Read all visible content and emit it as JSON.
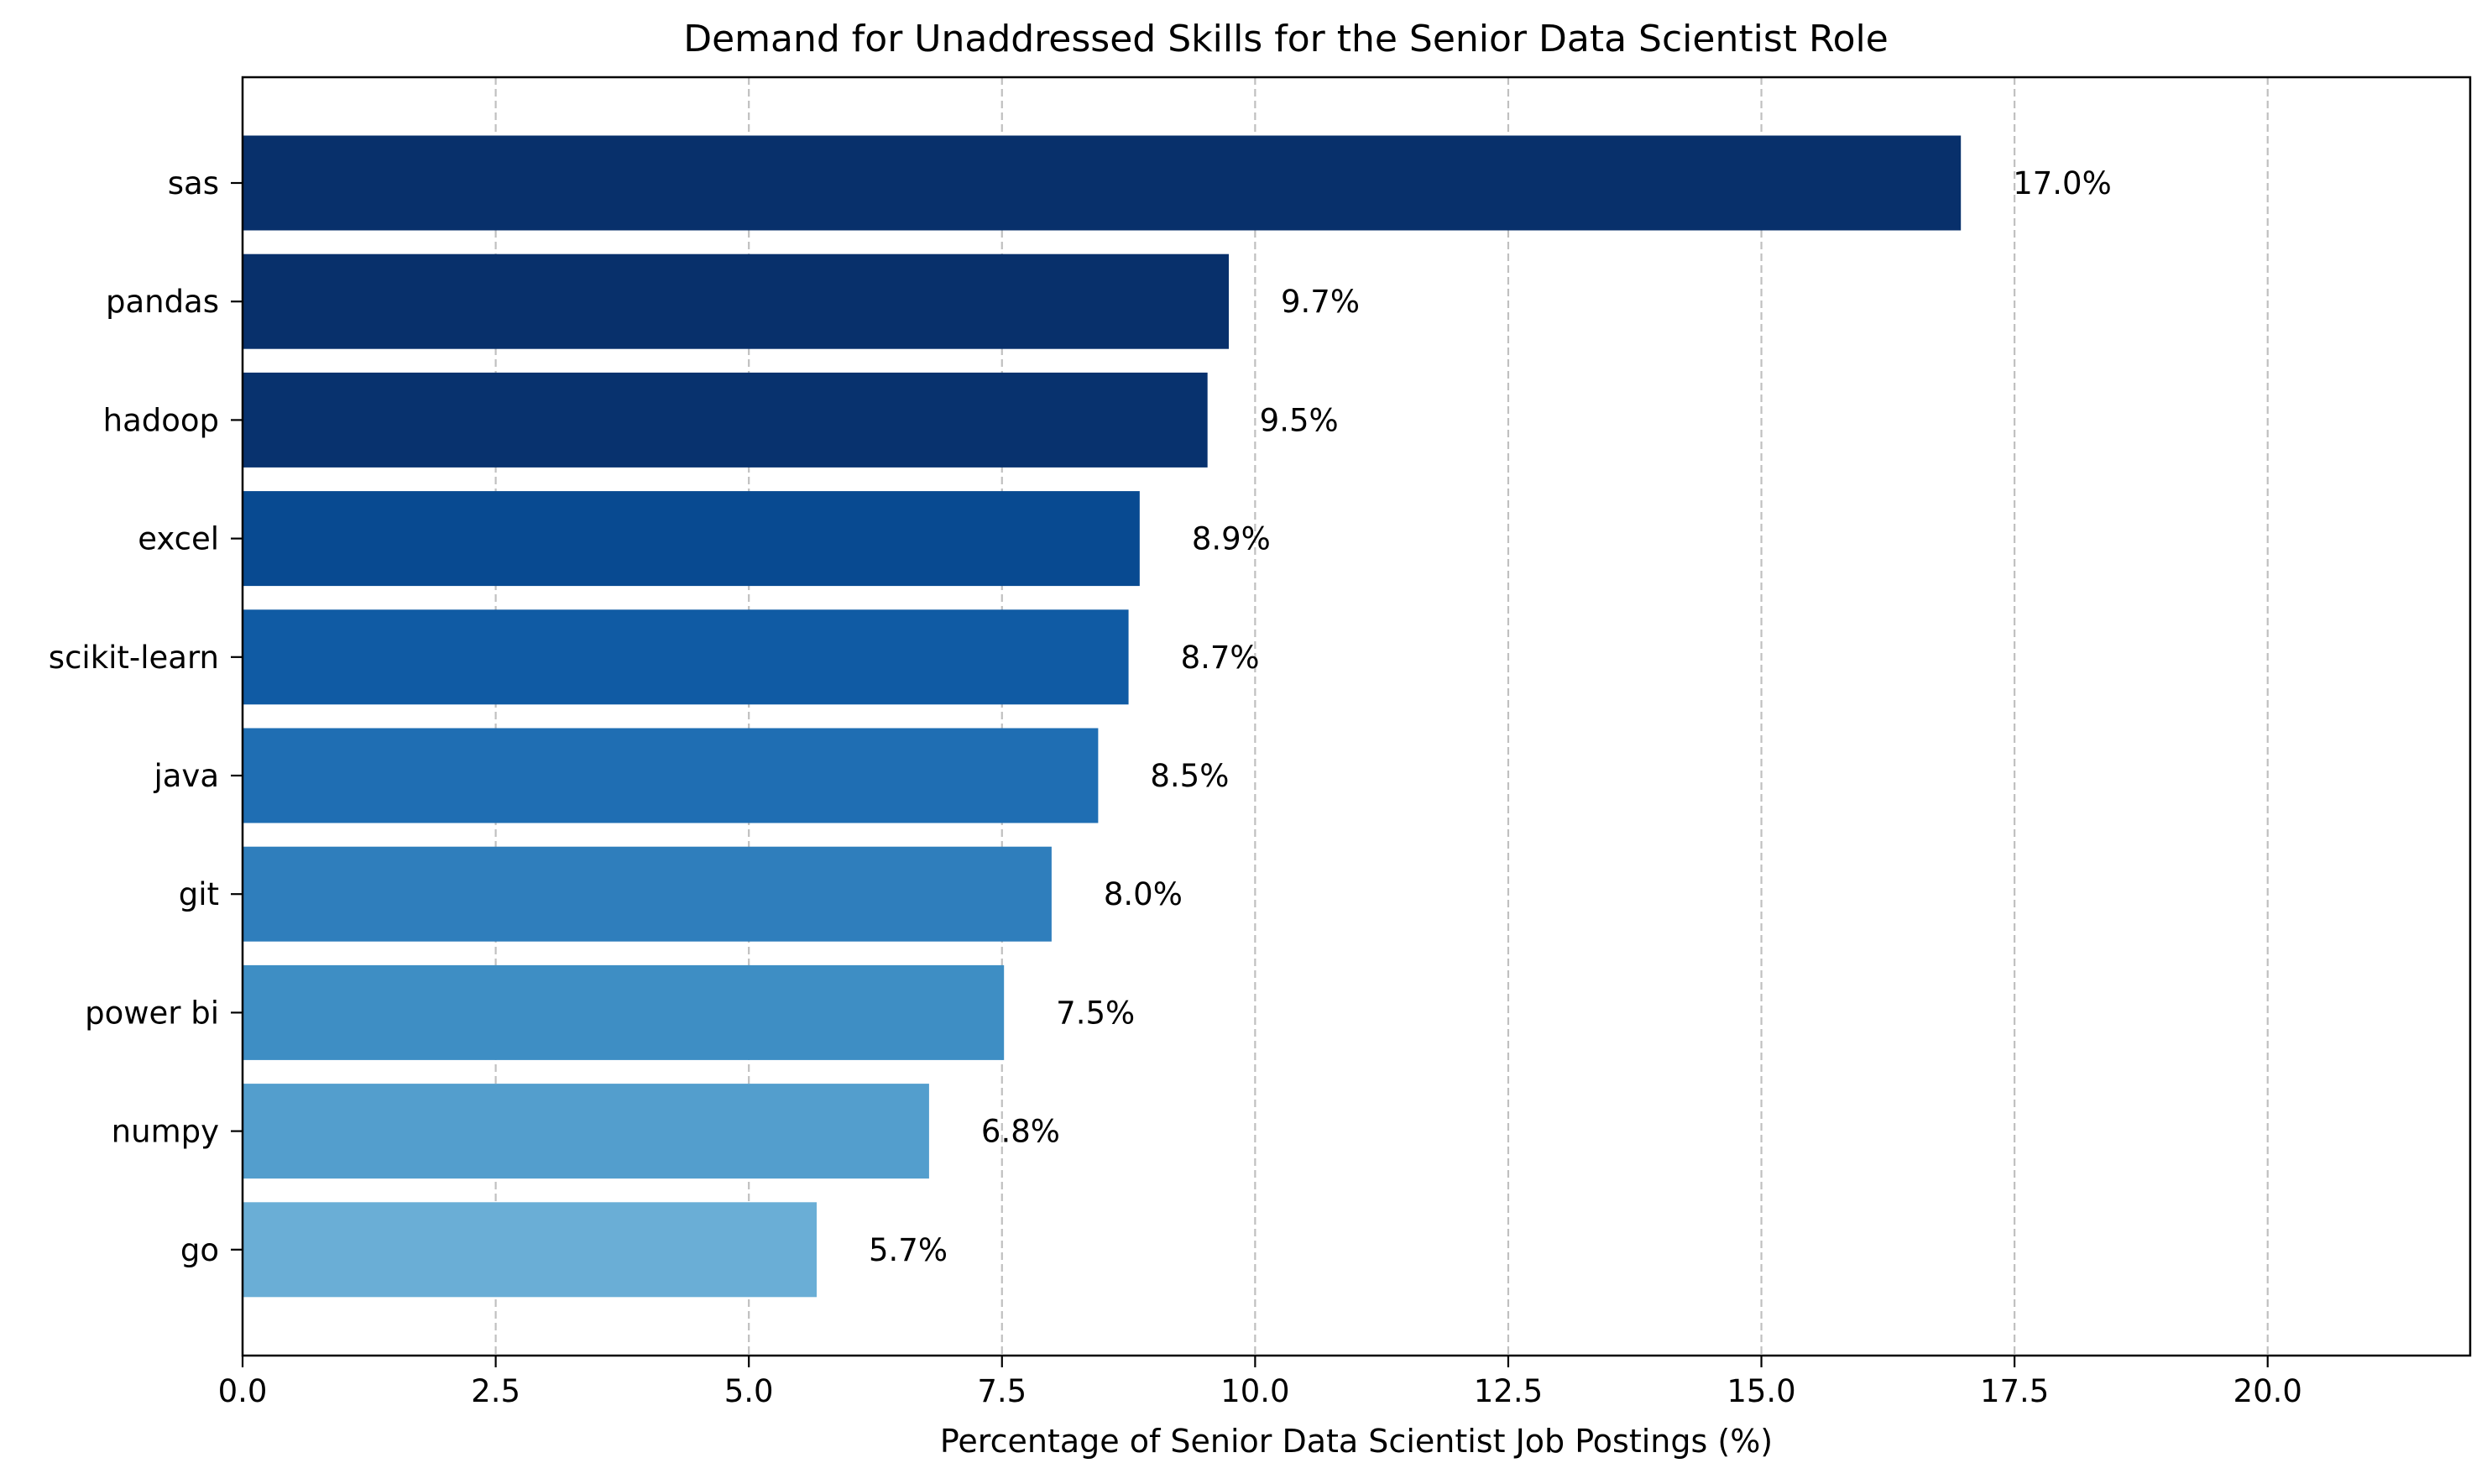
{
  "chart_data": {
    "type": "bar",
    "orientation": "horizontal",
    "title": "Demand for Unaddressed Skills for the Senior Data Scientist Role",
    "xlabel": "Percentage of Senior Data Scientist Job Postings (%)",
    "ylabel": "",
    "xlim": [
      0,
      22
    ],
    "xticks": [
      0.0,
      2.5,
      5.0,
      7.5,
      10.0,
      12.5,
      15.0,
      17.5,
      20.0
    ],
    "xtick_labels": [
      "0.0",
      "2.5",
      "5.0",
      "7.5",
      "10.0",
      "12.5",
      "15.0",
      "17.5",
      "20.0"
    ],
    "grid": {
      "x": true,
      "y": false,
      "style": "dashed"
    },
    "categories": [
      "sas",
      "pandas",
      "hadoop",
      "excel",
      "scikit-learn",
      "java",
      "git",
      "power bi",
      "numpy",
      "go"
    ],
    "values": [
      16.97,
      9.74,
      9.53,
      8.86,
      8.75,
      8.45,
      7.99,
      7.52,
      6.78,
      5.67
    ],
    "value_labels": [
      "17.0%",
      "9.7%",
      "9.5%",
      "8.9%",
      "8.7%",
      "8.5%",
      "8.0%",
      "7.5%",
      "6.8%",
      "5.7%"
    ],
    "colors": [
      "#08306b",
      "#08306b",
      "#08326e",
      "#084a91",
      "#105ba4",
      "#1f6eb3",
      "#2f7ebc",
      "#3e8ec4",
      "#539ecd",
      "#6aaed6"
    ]
  }
}
